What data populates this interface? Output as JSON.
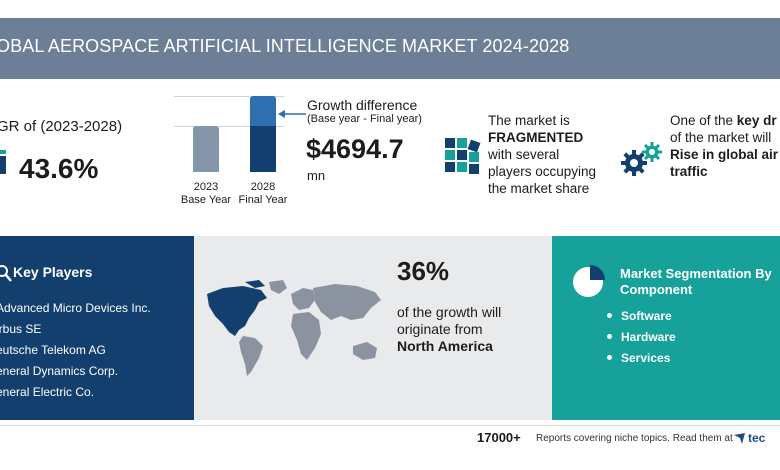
{
  "header": {
    "title": "OBAL AEROSPACE ARTIFICIAL INTELLIGENCE MARKET 2024-2028"
  },
  "cagr": {
    "label": "GR of (2023-2028)",
    "value": "43.6%"
  },
  "bars": {
    "items": [
      {
        "year": "2023",
        "label": "Base Year"
      },
      {
        "year": "2028",
        "label": "Final Year"
      }
    ]
  },
  "growth": {
    "title": "Growth difference",
    "subtitle": "(Base year - Final year)",
    "value": "$4694.7",
    "unit": "mn"
  },
  "market": {
    "line1": "The market is",
    "line2": "FRAGMENTED",
    "line3": "with several",
    "line4": "players occupying",
    "line5": "the market share"
  },
  "driver": {
    "line1a": "One of the ",
    "line1b": "key dr",
    "line2": "of the market will",
    "line3": "Rise in global air",
    "line4": "traffic"
  },
  "key_players": {
    "title": "Key Players",
    "items": [
      "Advanced Micro Devices Inc.",
      "irbus SE",
      "eutsche Telekom AG",
      "eneral Dynamics Corp.",
      "eneral Electric Co."
    ]
  },
  "region": {
    "percent": "36%",
    "line1": "of the growth will",
    "line2": "originate from",
    "line3": "North America"
  },
  "segmentation": {
    "title_line1": "Market Segmentation By",
    "title_line2": "Component",
    "items": [
      "Software",
      "Hardware",
      "Services"
    ]
  },
  "footer": {
    "count": "17000+",
    "text": "Reports covering niche topics. Read them at",
    "brand": "tec"
  },
  "colors": {
    "title_bar": "#6c7f96",
    "navy": "#123f6e",
    "teal": "#17a19b",
    "bar_base": "#8596ab",
    "bar_final_top": "#2f6fb0",
    "bar_final_bottom": "#123f6e"
  }
}
